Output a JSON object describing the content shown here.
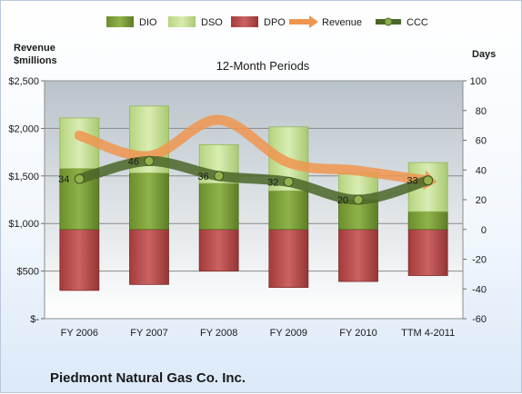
{
  "chart_data": {
    "type": "bar",
    "subtitle": "12-Month Periods",
    "company": "Piedmont Natural Gas Co. Inc.",
    "left_axis_label": [
      "Revenue",
      "$millions"
    ],
    "right_axis_label": "Days",
    "categories": [
      "FY 2006",
      "FY 2007",
      "FY 2008",
      "FY 2009",
      "FY 2010",
      "TTM 4-2011"
    ],
    "left_axis": {
      "min": 0,
      "max": 2500,
      "step": 500,
      "tick_labels": [
        "$-",
        "$500",
        "$1,000",
        "$1,500",
        "$2,000",
        "$2,500"
      ]
    },
    "right_axis": {
      "min": -60,
      "max": 100,
      "step": 20,
      "tick_labels": [
        "-60",
        "-40",
        "-20",
        "0",
        "20",
        "40",
        "60",
        "80",
        "100"
      ]
    },
    "series": [
      {
        "name": "DIO",
        "axis": "right",
        "kind": "stacked-bar",
        "values": [
          41,
          38,
          31,
          26,
          20,
          12
        ]
      },
      {
        "name": "DSO",
        "axis": "right",
        "kind": "stacked-bar",
        "values": [
          34,
          45,
          26,
          43,
          18,
          33
        ]
      },
      {
        "name": "DPO",
        "axis": "right",
        "kind": "negative-bar",
        "values": [
          41,
          37,
          28,
          39,
          35,
          31
        ]
      },
      {
        "name": "Revenue",
        "axis": "left",
        "kind": "line",
        "values": [
          1925,
          1710,
          2090,
          1640,
          1555,
          1450
        ]
      },
      {
        "name": "CCC",
        "axis": "right",
        "kind": "line",
        "values": [
          34,
          46,
          36,
          32,
          20,
          33
        ],
        "labels": [
          "34",
          "46",
          "36",
          "32",
          "20",
          "33"
        ]
      }
    ],
    "colors": {
      "DIO": "#7ea33a",
      "DSO": "#c9e39a",
      "DPO": "#b84a4a",
      "Revenue": "#f0954f",
      "CCC": "#4a6628",
      "plot_top": "#b9c3ca",
      "plot_bottom": "#ffffff"
    },
    "legend_position": "top",
    "grid": true
  }
}
